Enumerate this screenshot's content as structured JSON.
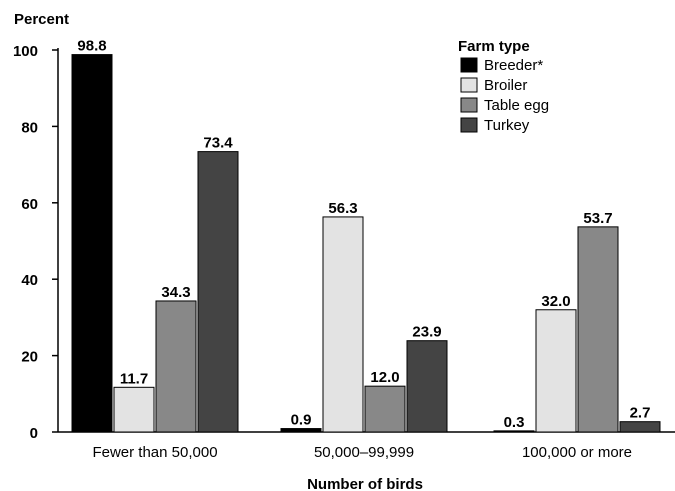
{
  "chart_data": {
    "type": "bar",
    "ylabel": "Percent",
    "xlabel": "Number of birds",
    "ylim": [
      0,
      100
    ],
    "yticks": [
      0,
      20,
      40,
      60,
      80,
      100
    ],
    "categories": [
      "Fewer than 50,000",
      "50,000–99,999",
      "100,000 or more"
    ],
    "legend_title": "Farm type",
    "legend_position": "top-right",
    "grid": false,
    "series": [
      {
        "name": "Breeder*",
        "color": "#000000",
        "values": [
          98.8,
          0.9,
          0.3
        ]
      },
      {
        "name": "Broiler",
        "color": "#e3e3e3",
        "values": [
          11.7,
          56.3,
          32.0
        ]
      },
      {
        "name": "Table egg",
        "color": "#888888",
        "values": [
          34.3,
          12.0,
          53.7
        ]
      },
      {
        "name": "Turkey",
        "color": "#444444",
        "values": [
          73.4,
          23.9,
          2.7
        ]
      }
    ]
  }
}
